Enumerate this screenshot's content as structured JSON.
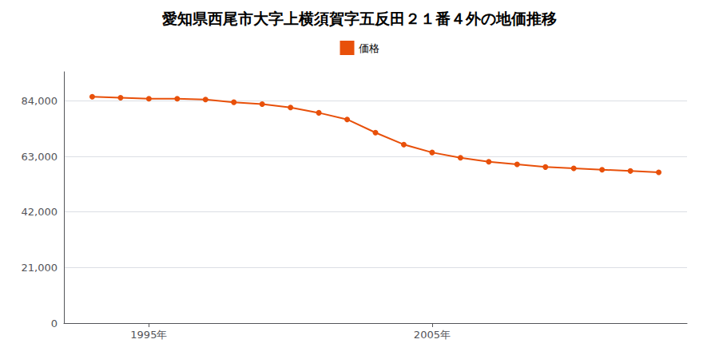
{
  "chart_data": {
    "type": "line",
    "title": "愛知県西尾市大字上横須賀字五反田２１番４外の地価推移",
    "x": [
      1993,
      1994,
      1995,
      1996,
      1997,
      1998,
      1999,
      2000,
      2001,
      2002,
      2003,
      2004,
      2005,
      2006,
      2007,
      2008,
      2009,
      2010,
      2011,
      2012,
      2013
    ],
    "series": [
      {
        "name": "価格",
        "color": "#E8500A",
        "marker": "circle",
        "values": [
          85600,
          85200,
          84800,
          84800,
          84500,
          83500,
          82800,
          81500,
          79500,
          77000,
          72000,
          67500,
          64500,
          62500,
          61000,
          60000,
          59000,
          58500,
          58000,
          57500,
          57000
        ]
      }
    ],
    "xlim": [
      1992,
      2014
    ],
    "xticks": [
      {
        "value": 1995,
        "label": "1995年"
      },
      {
        "value": 2005,
        "label": "2005年"
      }
    ],
    "ylim": [
      0,
      95000
    ],
    "yticks": [
      0,
      {
        "value": 21000,
        "label": "21,000"
      },
      {
        "value": 42000,
        "label": "42,000"
      },
      {
        "value": 63000,
        "label": "63,000"
      },
      {
        "value": 84000,
        "label": "84,000"
      }
    ],
    "grid": true,
    "legend": "top"
  }
}
